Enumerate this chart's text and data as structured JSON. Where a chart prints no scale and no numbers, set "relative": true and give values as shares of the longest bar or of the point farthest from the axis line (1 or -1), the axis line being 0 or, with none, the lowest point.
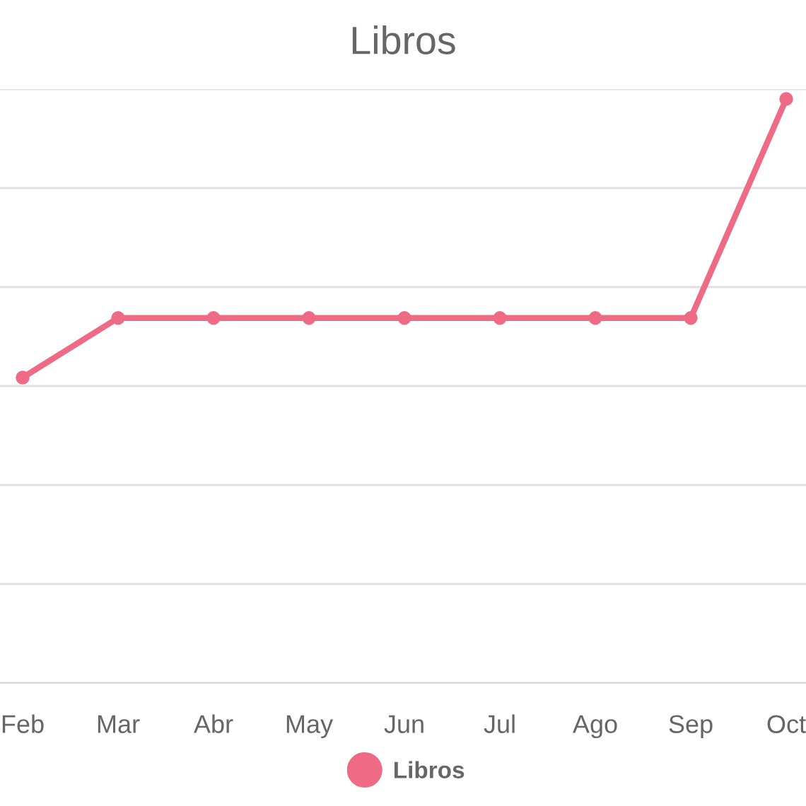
{
  "chart_data": {
    "type": "line",
    "title": "Libros",
    "categories": [
      "Feb",
      "Mar",
      "Abr",
      "May",
      "Jun",
      "Jul",
      "Ago",
      "Sep",
      "Oct"
    ],
    "series": [
      {
        "name": "Libros",
        "color": "#ee6a85",
        "values": [
          0.523,
          0.625,
          0.625,
          0.625,
          0.625,
          0.625,
          0.625,
          0.625,
          1
        ]
      }
    ],
    "relative": true,
    "grid": "y",
    "legend": "bottom",
    "marker": "circle",
    "line_style": "solid"
  }
}
